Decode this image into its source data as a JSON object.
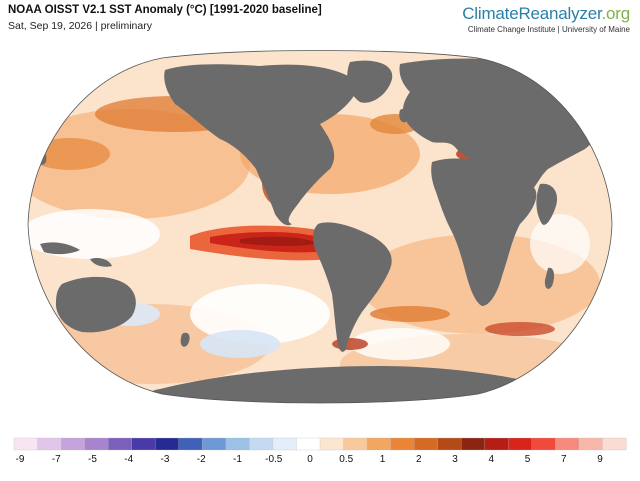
{
  "header": {
    "title": "NOAA OISST V2.1 SST Anomaly (°C) [1991-2020 baseline]",
    "subtitle": "Sat, Sep 19, 2026 | preliminary"
  },
  "brand": {
    "name_part1": "ClimateReanalyzer",
    "name_part2": ".org",
    "tagline": "Climate Change Institute | University of Maine",
    "color_primary": "#2a7fa8",
    "color_secondary": "#7fb24a"
  },
  "map": {
    "projection": "Robinson",
    "land_color": "#6b6b6b",
    "background_color": "#ffffff"
  },
  "legend": {
    "colors": [
      "#f7e6f2",
      "#e2c6ea",
      "#c7a3dd",
      "#a884cf",
      "#7a5fbd",
      "#4a3aa8",
      "#262a93",
      "#3f62b8",
      "#6f98d6",
      "#9cc0e6",
      "#c3daf2",
      "#e3eefa",
      "#ffffff",
      "#fde6cf",
      "#f9c99b",
      "#f2a662",
      "#e98534",
      "#d56a22",
      "#b34a18",
      "#8b2411",
      "#b51d15",
      "#d8241c",
      "#f04a3c",
      "#f58a7c",
      "#f7b8aa",
      "#fbdcd2"
    ],
    "ticks": [
      "-9",
      "-7",
      "-5",
      "-4",
      "-3",
      "-2",
      "-1",
      "-0.5",
      "0",
      "0.5",
      "1",
      "2",
      "3",
      "4",
      "5",
      "7",
      "9"
    ]
  }
}
